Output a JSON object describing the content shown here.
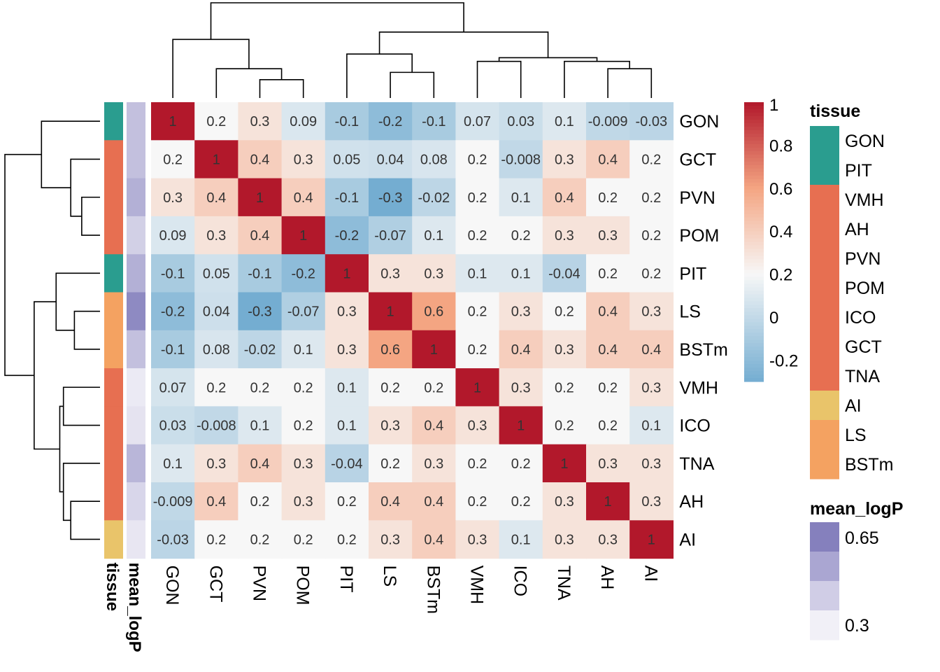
{
  "chart_data": {
    "type": "heatmap",
    "labels": [
      "GON",
      "GCT",
      "PVN",
      "POM",
      "PIT",
      "LS",
      "BSTm",
      "VMH",
      "ICO",
      "TNA",
      "AH",
      "AI"
    ],
    "values": [
      [
        "1",
        "0.2",
        "0.3",
        "0.09",
        "-0.1",
        "-0.2",
        "-0.1",
        "0.07",
        "0.03",
        "0.1",
        "-0.009",
        "-0.03"
      ],
      [
        "0.2",
        "1",
        "0.4",
        "0.3",
        "0.05",
        "0.04",
        "0.08",
        "0.2",
        "-0.008",
        "0.3",
        "0.4",
        "0.2"
      ],
      [
        "0.3",
        "0.4",
        "1",
        "0.4",
        "-0.1",
        "-0.3",
        "-0.02",
        "0.2",
        "0.1",
        "0.4",
        "0.2",
        "0.2"
      ],
      [
        "0.09",
        "0.3",
        "0.4",
        "1",
        "-0.2",
        "-0.07",
        "0.1",
        "0.2",
        "0.2",
        "0.3",
        "0.3",
        "0.2"
      ],
      [
        "-0.1",
        "0.05",
        "-0.1",
        "-0.2",
        "1",
        "0.3",
        "0.3",
        "0.1",
        "0.1",
        "-0.04",
        "0.2",
        "0.2"
      ],
      [
        "-0.2",
        "0.04",
        "-0.3",
        "-0.07",
        "0.3",
        "1",
        "0.6",
        "0.2",
        "0.3",
        "0.2",
        "0.4",
        "0.3"
      ],
      [
        "-0.1",
        "0.08",
        "-0.02",
        "0.1",
        "0.3",
        "0.6",
        "1",
        "0.2",
        "0.4",
        "0.3",
        "0.4",
        "0.4"
      ],
      [
        "0.07",
        "0.2",
        "0.2",
        "0.2",
        "0.1",
        "0.2",
        "0.2",
        "1",
        "0.3",
        "0.2",
        "0.2",
        "0.3"
      ],
      [
        "0.03",
        "-0.008",
        "0.1",
        "0.2",
        "0.1",
        "0.3",
        "0.4",
        "0.3",
        "1",
        "0.2",
        "0.2",
        "0.1"
      ],
      [
        "0.1",
        "0.3",
        "0.4",
        "0.3",
        "-0.04",
        "0.2",
        "0.3",
        "0.2",
        "0.2",
        "1",
        "0.3",
        "0.3"
      ],
      [
        "-0.009",
        "0.4",
        "0.2",
        "0.3",
        "0.2",
        "0.4",
        "0.4",
        "0.2",
        "0.2",
        "0.3",
        "1",
        "0.3"
      ],
      [
        "-0.03",
        "0.2",
        "0.2",
        "0.2",
        "0.2",
        "0.3",
        "0.4",
        "0.3",
        "0.1",
        "0.3",
        "0.3",
        "1"
      ]
    ],
    "row_tissue": [
      "GON",
      "VMH",
      "VMH",
      "VMH",
      "GON",
      "LS",
      "LS",
      "VMH",
      "VMH",
      "VMH",
      "VMH",
      "AI"
    ],
    "row_mean_logP": [
      0.45,
      0.45,
      0.5,
      0.4,
      0.5,
      0.62,
      0.45,
      0.32,
      0.34,
      0.48,
      0.38,
      0.33
    ],
    "col_dendrogram": [
      [
        2,
        3,
        0.5
      ],
      [
        1,
        12,
        0.8
      ],
      [
        0,
        13,
        1.6
      ],
      [
        5,
        6,
        0.7
      ],
      [
        4,
        15,
        1.2
      ],
      [
        10,
        11,
        0.8
      ],
      [
        9,
        17,
        1.0
      ],
      [
        7,
        8,
        1.0
      ],
      [
        19,
        18,
        1.1
      ],
      [
        16,
        20,
        1.8
      ],
      [
        14,
        21,
        2.6
      ]
    ],
    "row_dendrogram": [
      [
        2,
        3,
        0.5
      ],
      [
        1,
        12,
        0.8
      ],
      [
        0,
        13,
        1.6
      ],
      [
        5,
        6,
        0.7
      ],
      [
        4,
        15,
        1.2
      ],
      [
        10,
        11,
        0.8
      ],
      [
        9,
        17,
        1.0
      ],
      [
        7,
        8,
        1.0
      ],
      [
        19,
        18,
        1.1
      ],
      [
        16,
        20,
        1.8
      ],
      [
        14,
        21,
        2.6
      ]
    ],
    "color_scale": {
      "stops": [
        {
          "v": -0.3,
          "c": "#74add1"
        },
        {
          "v": 0.2,
          "c": "#f7f7f7"
        },
        {
          "v": 0.6,
          "c": "#f4a582"
        },
        {
          "v": 1.0,
          "c": "#b2182b"
        }
      ],
      "ticks": [
        "1",
        "0.8",
        "0.6",
        "0.4",
        "0.2",
        "0",
        "-0.2"
      ],
      "tick_values": [
        1,
        0.8,
        0.6,
        0.4,
        0.2,
        0,
        -0.2
      ]
    },
    "annotation_titles": {
      "tissue": "tissue",
      "mean_logP": "mean_logP"
    },
    "tissue_legend": {
      "title": "tissue",
      "items": [
        {
          "label": "GON",
          "color": "#2a9d8f"
        },
        {
          "label": "PIT",
          "color": "#2a9d8f"
        },
        {
          "label": "VMH",
          "color": "#e76f51"
        },
        {
          "label": "AH",
          "color": "#e76f51"
        },
        {
          "label": "PVN",
          "color": "#e76f51"
        },
        {
          "label": "POM",
          "color": "#e76f51"
        },
        {
          "label": "ICO",
          "color": "#e76f51"
        },
        {
          "label": "GCT",
          "color": "#e76f51"
        },
        {
          "label": "TNA",
          "color": "#e76f51"
        },
        {
          "label": "AI",
          "color": "#e9c46a"
        },
        {
          "label": "LS",
          "color": "#f4a261"
        },
        {
          "label": "BSTm",
          "color": "#f4a261"
        }
      ]
    },
    "tissue_colors": {
      "GON": "#2a9d8f",
      "VMH": "#e76f51",
      "AI": "#e9c46a",
      "LS": "#f4a261"
    },
    "logp_legend": {
      "title": "mean_logP",
      "swatches": [
        "#8580bd",
        "#aaa6d2",
        "#d0cde6",
        "#f1f0f7"
      ],
      "tick_labels": [
        "0.65",
        "0.3"
      ]
    },
    "logp_scale": {
      "min": 0.3,
      "max": 0.65,
      "low": "#f1f0f7",
      "high": "#8580bd"
    }
  }
}
